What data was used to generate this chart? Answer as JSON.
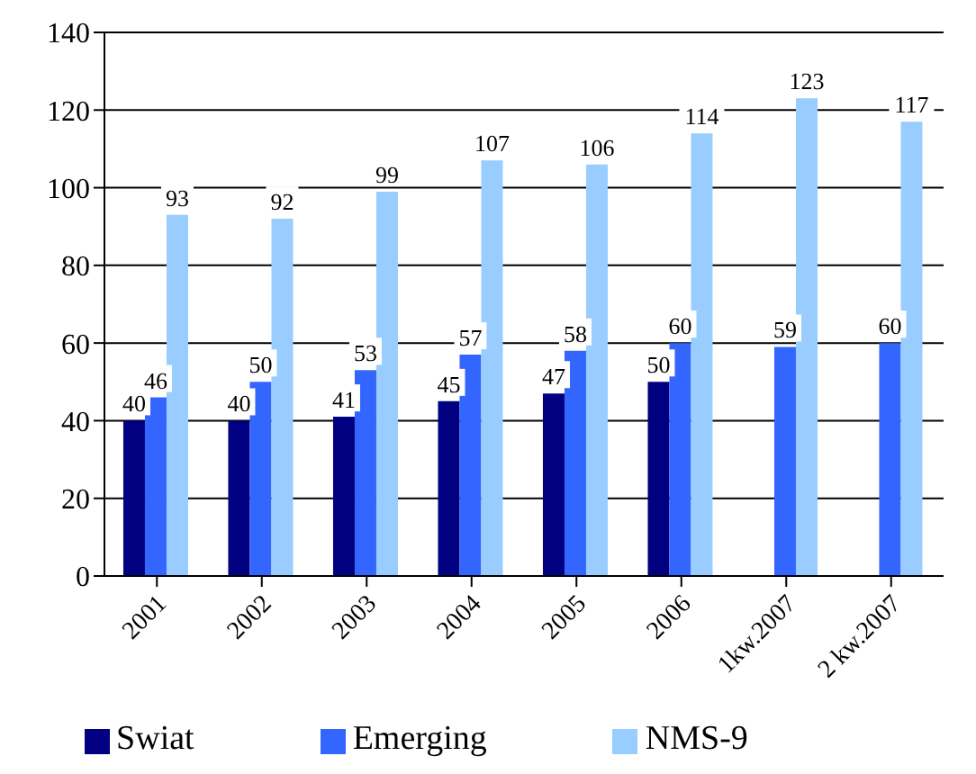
{
  "chart_data": {
    "type": "bar",
    "categories": [
      "2001",
      "2002",
      "2003",
      "2004",
      "2005",
      "2006",
      "1kw.2007",
      "2 kw.2007"
    ],
    "series": [
      {
        "name": "Swiat",
        "color": "#000080",
        "values": [
          40,
          40,
          41,
          45,
          47,
          50,
          null,
          null
        ]
      },
      {
        "name": "Emerging",
        "color": "#3366ff",
        "values": [
          46,
          50,
          53,
          57,
          58,
          60,
          59,
          60
        ]
      },
      {
        "name": "NMS-9",
        "color": "#99ccff",
        "values": [
          93,
          92,
          99,
          107,
          106,
          114,
          123,
          117
        ]
      }
    ],
    "ylim": [
      0,
      140
    ],
    "yticks": [
      0,
      20,
      40,
      60,
      80,
      100,
      120,
      140
    ],
    "grid": "y",
    "legend": "bottom",
    "data_labels": true
  }
}
